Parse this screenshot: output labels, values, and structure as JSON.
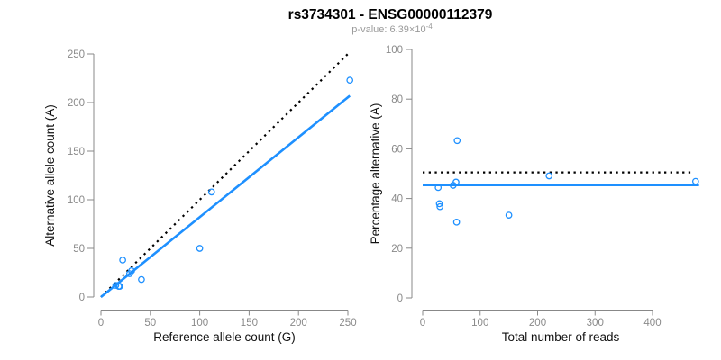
{
  "title": "rs3734301 - ENSG00000112379",
  "subtitle": {
    "prefix": "p-value: 6.39×10",
    "exponent": "-4",
    "full_text": "p-value: 6.39×10^-4"
  },
  "colors": {
    "accent_blue": "#1E90FF",
    "reference_black": "#000000",
    "axis_gray": "#888888",
    "tick_label_gray": "#8a8a8a",
    "subtitle_gray": "#9a9a9a"
  },
  "chart_data": [
    {
      "type": "scatter",
      "name": "allele-counts-scatter",
      "xlabel": "Reference allele count (G)",
      "ylabel": "Alternative allele count (A)",
      "xlim": [
        0,
        252
      ],
      "ylim": [
        0,
        252
      ],
      "xticks": [
        0,
        50,
        100,
        150,
        200,
        250
      ],
      "yticks": [
        0,
        50,
        100,
        150,
        200,
        250
      ],
      "grid": false,
      "legend": null,
      "points": [
        [
          15,
          12
        ],
        [
          18,
          11
        ],
        [
          19,
          11
        ],
        [
          22,
          38
        ],
        [
          29,
          24
        ],
        [
          31,
          27
        ],
        [
          41,
          18
        ],
        [
          100,
          50
        ],
        [
          112,
          108
        ],
        [
          252,
          223
        ]
      ],
      "lines": [
        {
          "name": "identity-line",
          "style": "dotted",
          "color": "#000000",
          "x1": 0,
          "y1": 0,
          "x2": 251,
          "y2": 251
        },
        {
          "name": "fit-line",
          "style": "solid",
          "color": "#1E90FF",
          "x1": 0,
          "y1": 0,
          "x2": 252,
          "y2": 207
        }
      ]
    },
    {
      "type": "scatter",
      "name": "percentage-vs-reads-scatter",
      "xlabel": "Total number of reads",
      "ylabel": "Percentage alternative (A)",
      "xlim": [
        0,
        481
      ],
      "ylim": [
        0,
        100
      ],
      "xticks": [
        0,
        100,
        200,
        300,
        400
      ],
      "yticks": [
        0,
        20,
        40,
        60,
        80,
        100
      ],
      "grid": false,
      "legend": null,
      "points": [
        [
          27,
          44.4
        ],
        [
          29,
          37.9
        ],
        [
          30,
          36.7
        ],
        [
          53,
          45.3
        ],
        [
          58,
          46.6
        ],
        [
          59,
          30.5
        ],
        [
          60,
          63.3
        ],
        [
          150,
          33.3
        ],
        [
          220,
          49.1
        ],
        [
          475,
          46.9
        ]
      ],
      "lines": [
        {
          "name": "expected-50pct-line",
          "style": "dotted",
          "color": "#000000",
          "x1": 0,
          "y1": 50.5,
          "x2": 472,
          "y2": 50.5
        },
        {
          "name": "mean-percentage-line",
          "style": "solid",
          "color": "#1E90FF",
          "x1": 0,
          "y1": 45.4,
          "x2": 481,
          "y2": 45.4
        }
      ]
    }
  ]
}
